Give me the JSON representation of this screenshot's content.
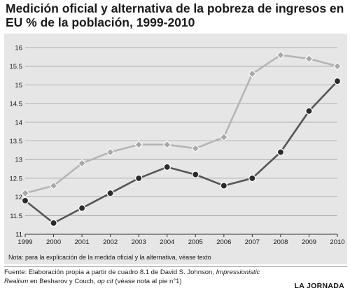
{
  "title": "Medición oficial y alternativa de la pobreza de ingresos en EU % de la población, 1999-2010",
  "note": "Nota: para la explicación de la medida oficial y la alternativa, véase texto",
  "source": {
    "prefix": "Fuente: Elaboración propia a partir de cuadro 8.1 de David S. Johnson, ",
    "italic1": "Impressionistic Realism",
    "middle": " en Besharov y Couch, ",
    "italic2": "op cit",
    "suffix": " (véase nota al pie n°1)"
  },
  "logo": "LA JORNADA",
  "colors": {
    "background_panel": "#e6e6e6",
    "official_line": "#555555",
    "alternative_line": "#b5b5b5",
    "marker_fill_official": "#2b2b2b",
    "marker_fill_alternative": "#a8a8a8"
  },
  "chart_data": {
    "type": "line",
    "title": "Medición oficial y alternativa de la pobreza de ingresos en EU % de la población, 1999-2010",
    "xlabel": "",
    "ylabel": "",
    "x": [
      "1999",
      "2000",
      "2001",
      "2002",
      "2003",
      "2004",
      "2005",
      "2006",
      "2007",
      "2008",
      "2009",
      "2010"
    ],
    "ylim": [
      11,
      16
    ],
    "yticks": [
      "11",
      "11.5",
      "12",
      "12.5",
      "13",
      "13.5",
      "14",
      "14.5",
      "15",
      "15.5",
      "16"
    ],
    "grid": true,
    "legend": "none",
    "series": [
      {
        "marker": "diamond",
        "values": [
          12.1,
          12.3,
          12.9,
          13.2,
          13.4,
          13.4,
          13.3,
          13.6,
          15.3,
          15.8,
          15.7,
          15.5
        ]
      },
      {
        "marker": "circle",
        "values": [
          11.9,
          11.3,
          11.7,
          12.1,
          12.5,
          12.8,
          12.6,
          12.3,
          12.5,
          13.2,
          14.3,
          15.1
        ]
      }
    ]
  }
}
